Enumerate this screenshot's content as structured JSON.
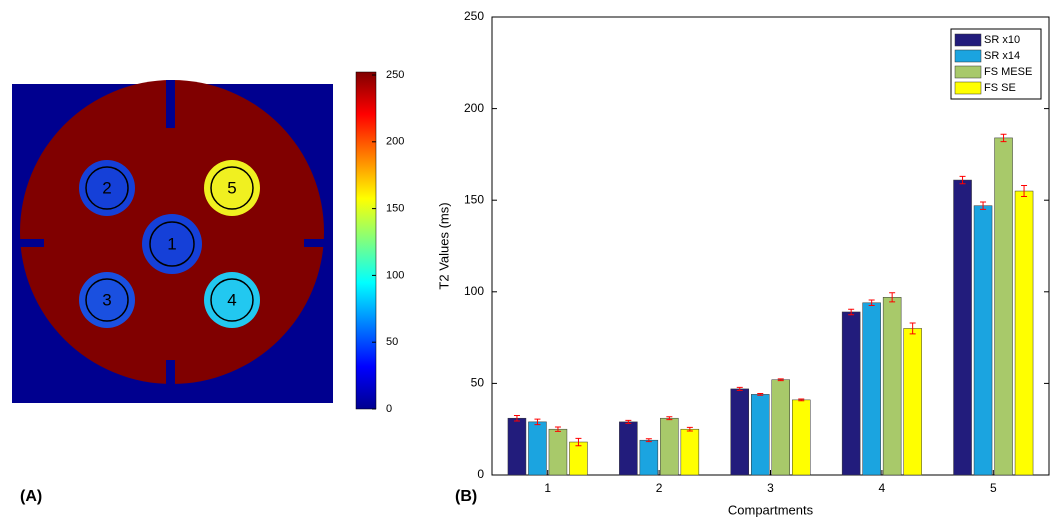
{
  "chart_data": [
    {
      "type": "image",
      "panel": "(A)",
      "labels": [
        "1",
        "2",
        "3",
        "4",
        "5"
      ],
      "colorbar": {
        "lim": [
          0,
          250
        ],
        "ticks": [
          0,
          50,
          100,
          150,
          200,
          250
        ]
      }
    },
    {
      "type": "bar",
      "panel": "(B)",
      "x_label": "Compartments",
      "y_label": "T2 Values (ms)",
      "categories": [
        "1",
        "2",
        "3",
        "4",
        "5"
      ],
      "ylim": [
        0,
        250
      ],
      "yticks": [
        0,
        50,
        100,
        150,
        200,
        250
      ],
      "legend": "upper right",
      "error_color": "#ff0000",
      "series": [
        {
          "name": "SR x10",
          "color": "#221c7c",
          "values": [
            31,
            29,
            47,
            89,
            161
          ],
          "errors": [
            1.5,
            0.8,
            0.8,
            1.5,
            2
          ]
        },
        {
          "name": "SR x14",
          "color": "#1ba4e0",
          "values": [
            29,
            19,
            44,
            94,
            147
          ],
          "errors": [
            1.5,
            0.8,
            0.5,
            1.5,
            2
          ]
        },
        {
          "name": "FS MESE",
          "color": "#a8c96a",
          "values": [
            25,
            31,
            52,
            97,
            184
          ],
          "errors": [
            1.2,
            0.8,
            0.5,
            2.5,
            2
          ]
        },
        {
          "name": "FS SE",
          "color": "#ffff00",
          "values": [
            18,
            25,
            41,
            80,
            155
          ],
          "errors": [
            2,
            1,
            0.5,
            3,
            3
          ]
        }
      ]
    }
  ]
}
